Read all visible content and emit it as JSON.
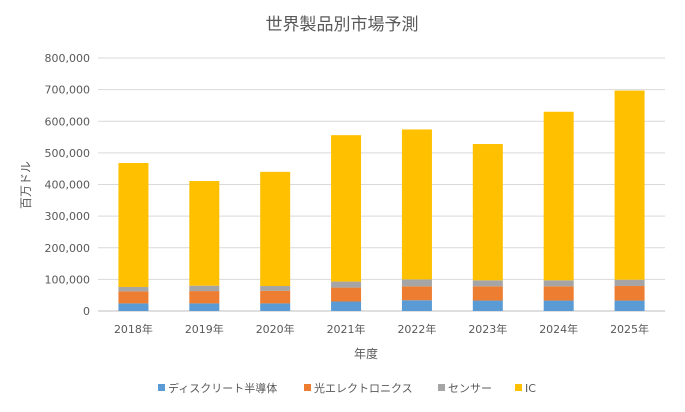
{
  "chart_data": {
    "type": "bar",
    "stacked": true,
    "title": "世界製品別市場予測",
    "xlabel": "年度",
    "ylabel": "百万ドル",
    "categories": [
      "2018年",
      "2019年",
      "2020年",
      "2021年",
      "2022年",
      "2023年",
      "2024年",
      "2025年"
    ],
    "ylim": [
      0,
      800000
    ],
    "yticks": [
      "0",
      "100,000",
      "200,000",
      "300,000",
      "400,000",
      "500,000",
      "600,000",
      "700,000",
      "800,000"
    ],
    "grid": true,
    "legend_position": "bottom",
    "series": [
      {
        "name": "ディスクリート半導体",
        "color": "#5B9BD5",
        "values": [
          24000,
          24000,
          24000,
          30000,
          34000,
          33000,
          33000,
          33000
        ]
      },
      {
        "name": "光エレクトロニクス",
        "color": "#ED7D31",
        "values": [
          38000,
          39000,
          40000,
          44000,
          44000,
          45000,
          45000,
          46000
        ]
      },
      {
        "name": "センサー",
        "color": "#A5A5A5",
        "values": [
          14000,
          17000,
          15000,
          19000,
          22000,
          19000,
          19000,
          20000
        ]
      },
      {
        "name": "IC",
        "color": "#FFC000",
        "values": [
          392000,
          331000,
          361000,
          463000,
          474000,
          431000,
          533000,
          598000
        ]
      }
    ]
  }
}
